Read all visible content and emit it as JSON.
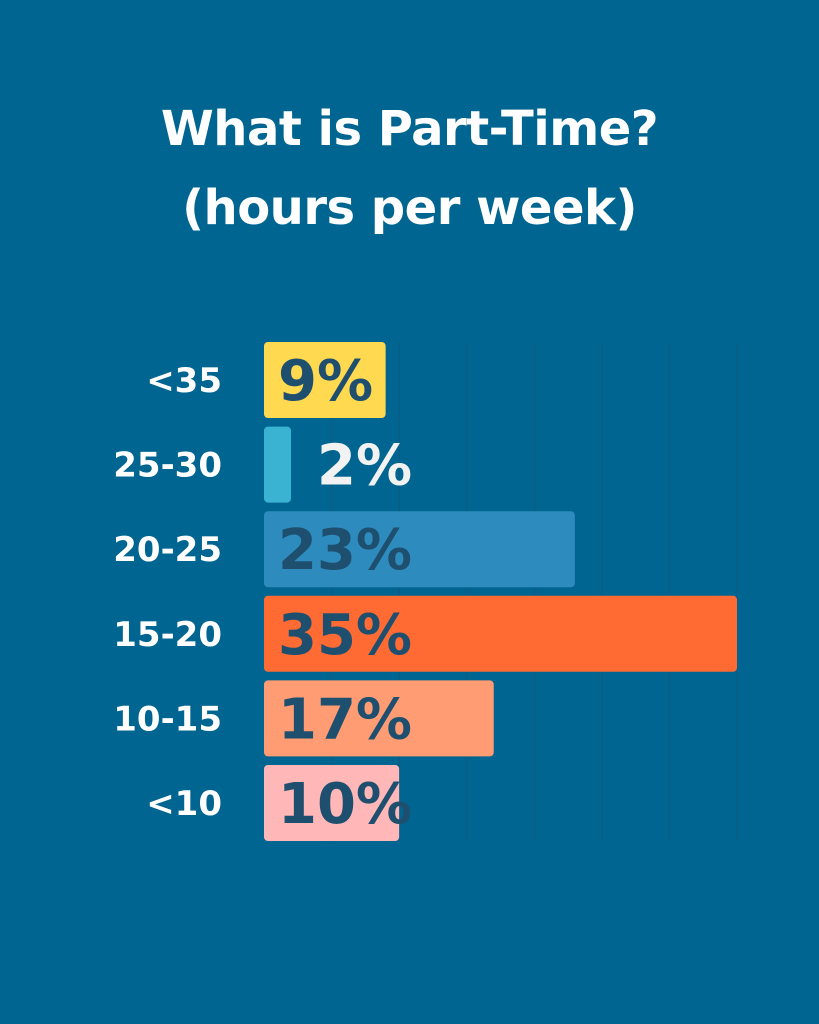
{
  "chart_data": {
    "type": "bar",
    "orientation": "horizontal",
    "title_lines": [
      "What is Part-Time?",
      "(hours per week)"
    ],
    "categories": [
      "<35",
      "25-30",
      "20-25",
      "15-20",
      "10-15",
      "<10"
    ],
    "values": [
      9,
      2,
      23,
      35,
      17,
      10
    ],
    "value_labels": [
      "9%",
      "2%",
      "23%",
      "35%",
      "17%",
      "10%"
    ],
    "xlim": [
      0,
      35
    ],
    "grid": true,
    "colors": {
      "background": "#006590",
      "grid": "#0C5E85",
      "bars": [
        "#FFD950",
        "#3AB3D3",
        "#2E8BBE",
        "#FF6B33",
        "#FF9C73",
        "#FFB7B7"
      ],
      "value_text": [
        "#1E4F6E",
        "#F2F2F2",
        "#1E4F6E",
        "#1E4F6E",
        "#1E4F6E",
        "#1E4F6E"
      ],
      "category_text": "#FFFFFF"
    }
  }
}
